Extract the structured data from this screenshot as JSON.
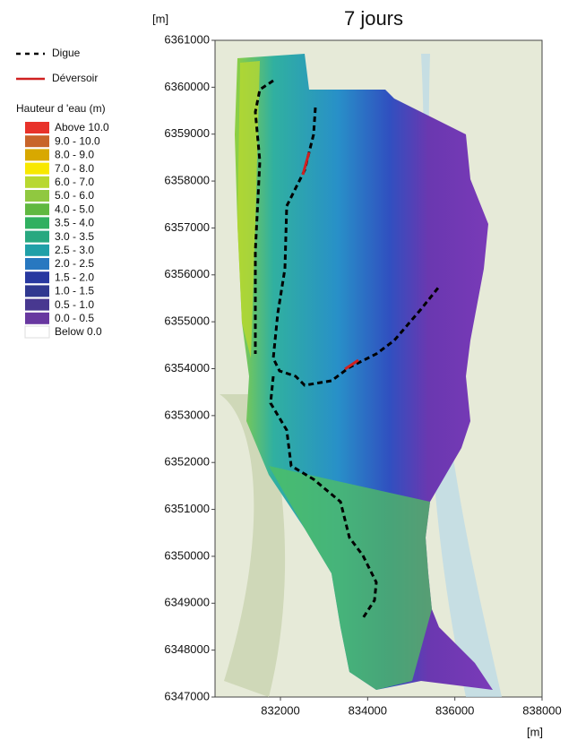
{
  "title": "7 jours",
  "y_unit": "[m]",
  "x_unit": "[m]",
  "xlim": [
    830500,
    838000
  ],
  "ylim": [
    6347000,
    6361000
  ],
  "xticks": [
    832000,
    834000,
    836000,
    838000
  ],
  "yticks": [
    6347000,
    6348000,
    6349000,
    6350000,
    6351000,
    6352000,
    6353000,
    6354000,
    6355000,
    6356000,
    6357000,
    6358000,
    6359000,
    6360000,
    6361000
  ],
  "legend": {
    "lines": [
      {
        "label": "Digue",
        "color": "#000000",
        "style": "dashed"
      },
      {
        "label": "Déversoir",
        "color": "#d02020",
        "style": "solid"
      }
    ],
    "title": "Hauteur d 'eau (m)",
    "classes": [
      {
        "label": "Above 10.0",
        "color": "#e8322a"
      },
      {
        "label": "9.0 - 10.0",
        "color": "#c8642a"
      },
      {
        "label": "8.0 - 9.0",
        "color": "#d8a800"
      },
      {
        "label": "7.0 - 8.0",
        "color": "#f8e800"
      },
      {
        "label": "6.0 - 7.0",
        "color": "#b8d830"
      },
      {
        "label": "5.0 - 6.0",
        "color": "#90c840"
      },
      {
        "label": "4.0 - 5.0",
        "color": "#60b840"
      },
      {
        "label": "3.5 - 4.0",
        "color": "#30b060"
      },
      {
        "label": "3.0 - 3.5",
        "color": "#28a880"
      },
      {
        "label": "2.5 - 3.0",
        "color": "#20a0a8"
      },
      {
        "label": "2.0 - 2.5",
        "color": "#2878c0"
      },
      {
        "label": "1.5 - 2.0",
        "color": "#2838a0"
      },
      {
        "label": "1.0 - 1.5",
        "color": "#303890"
      },
      {
        "label": "0.5 - 1.0",
        "color": "#483890"
      },
      {
        "label": "0.0 - 0.5",
        "color": "#6838a0"
      },
      {
        "label": "Below 0.0",
        "color": "#ffffff"
      }
    ]
  }
}
